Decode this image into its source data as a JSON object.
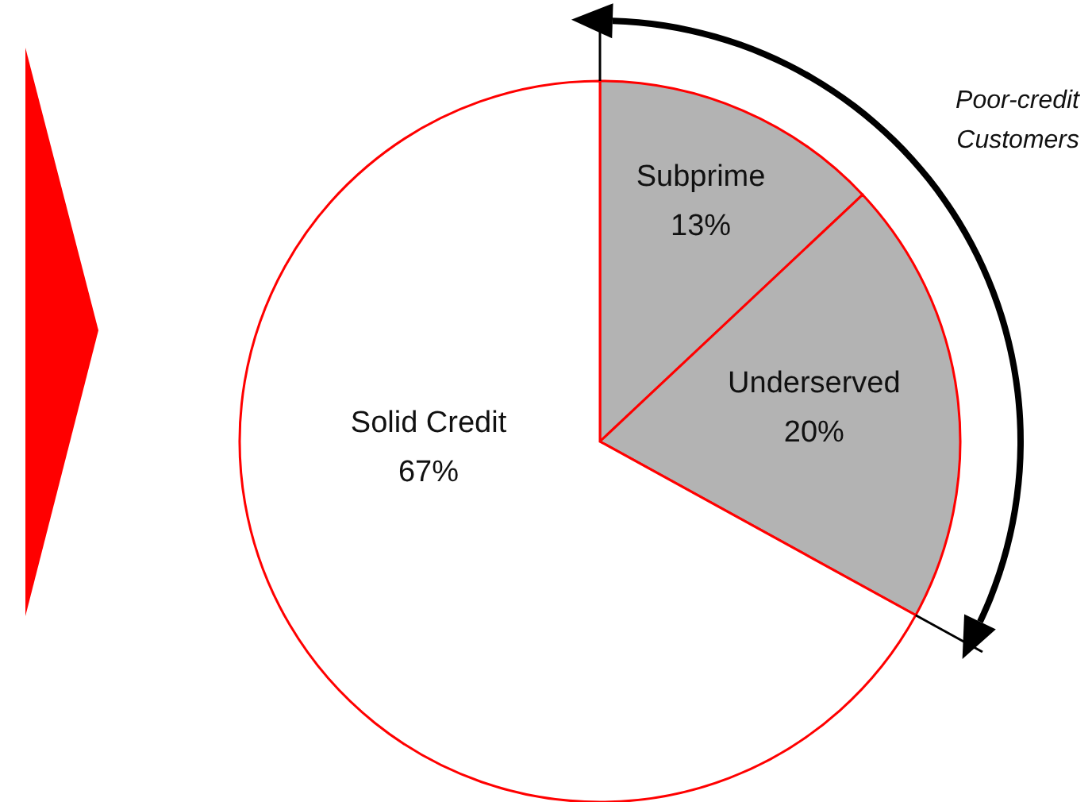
{
  "chart_data": {
    "type": "pie",
    "categories": [
      "Subprime",
      "Underserved",
      "Solid Credit"
    ],
    "values": [
      13,
      20,
      67
    ],
    "colors": [
      "#b3b3b3",
      "#b3b3b3",
      "#ffffff"
    ],
    "value_labels": [
      "13%",
      "20%",
      "67%"
    ],
    "annotations": [
      "Poor-credit Customers"
    ]
  }
}
